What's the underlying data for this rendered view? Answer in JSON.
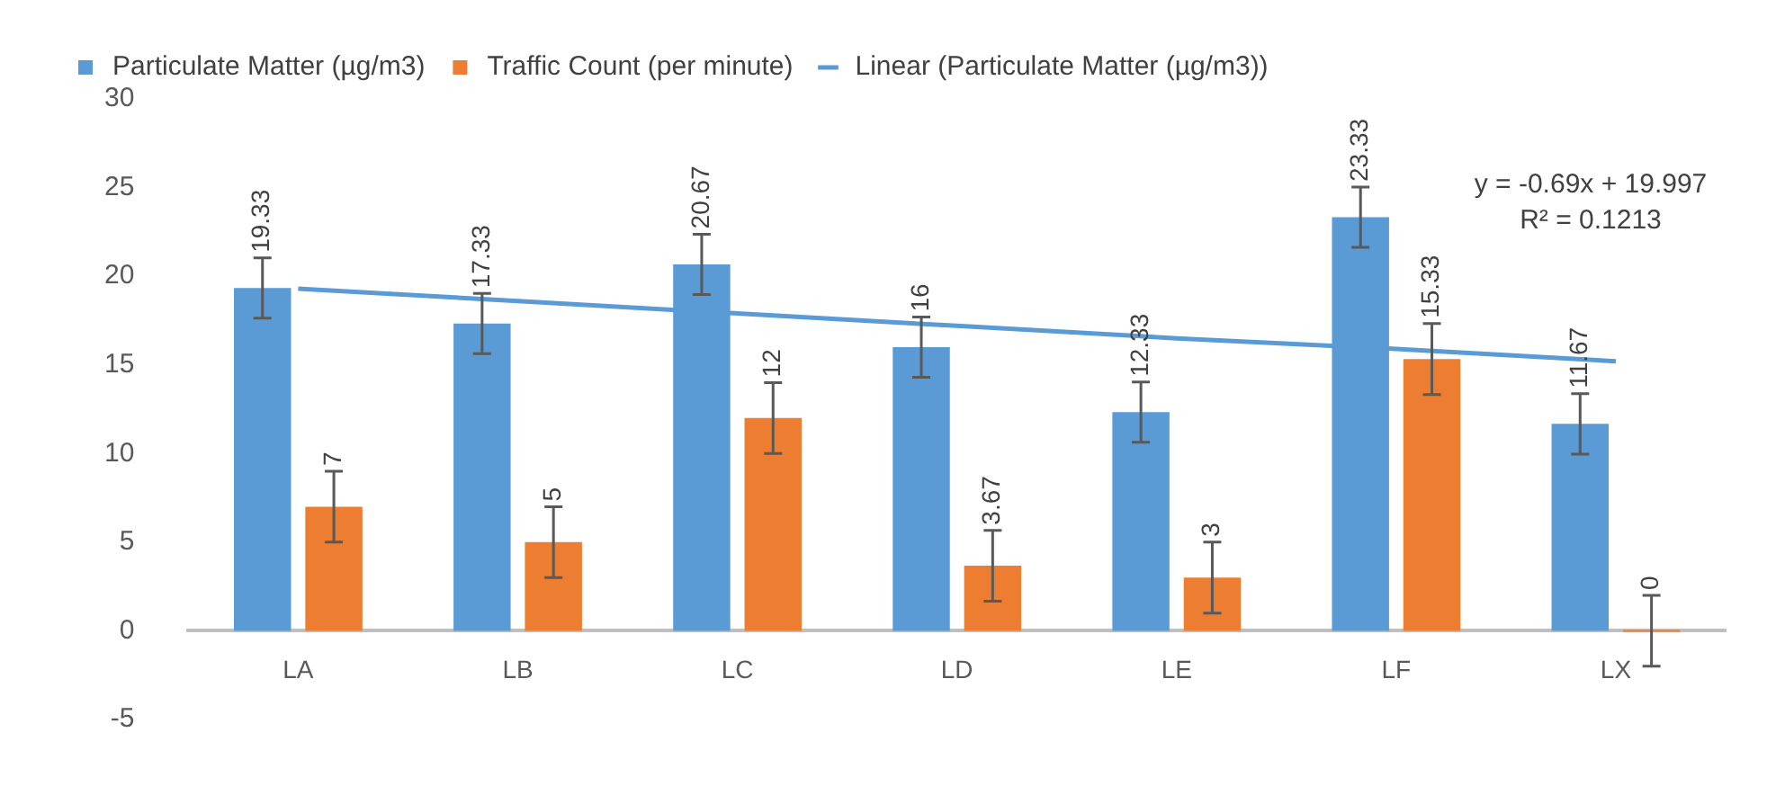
{
  "chart_data": {
    "type": "bar",
    "categories": [
      "LA",
      "LB",
      "LC",
      "LD",
      "LE",
      "LF",
      "LX"
    ],
    "series": [
      {
        "name": "Particulate Matter (µg/m3)",
        "color": "#5b9bd5",
        "values": [
          19.33,
          17.33,
          20.67,
          16,
          12.33,
          23.33,
          11.67
        ],
        "value_labels": [
          "19.33",
          "17.33",
          "20.67",
          "16",
          "12.33",
          "23.33",
          "11.67"
        ],
        "errors": [
          1.7,
          1.7,
          1.7,
          1.7,
          1.7,
          1.7,
          1.7
        ]
      },
      {
        "name": "Traffic Count (per minute)",
        "color": "#ed7d31",
        "values": [
          7,
          5,
          12,
          3.67,
          3,
          15.33,
          0
        ],
        "value_labels": [
          "7",
          "5",
          "12",
          "3.67",
          "3",
          "15.33",
          "0"
        ],
        "errors": [
          2,
          2,
          2,
          2,
          2,
          2,
          2
        ]
      },
      {
        "name": "Linear (Particulate Matter (µg/m3))",
        "type": "line",
        "color": "#5b9bd5",
        "values": [
          19.3,
          18.6,
          17.9,
          17.2,
          16.5,
          15.9,
          15.2
        ],
        "marker": "none"
      }
    ],
    "ylim": [
      -5,
      30
    ],
    "yticks": [
      -5,
      0,
      5,
      10,
      15,
      20,
      25,
      30
    ],
    "grid": false,
    "legend": "top left",
    "annotations": [
      "y = -0.69x + 19.997",
      "R² = 0.1213"
    ]
  }
}
